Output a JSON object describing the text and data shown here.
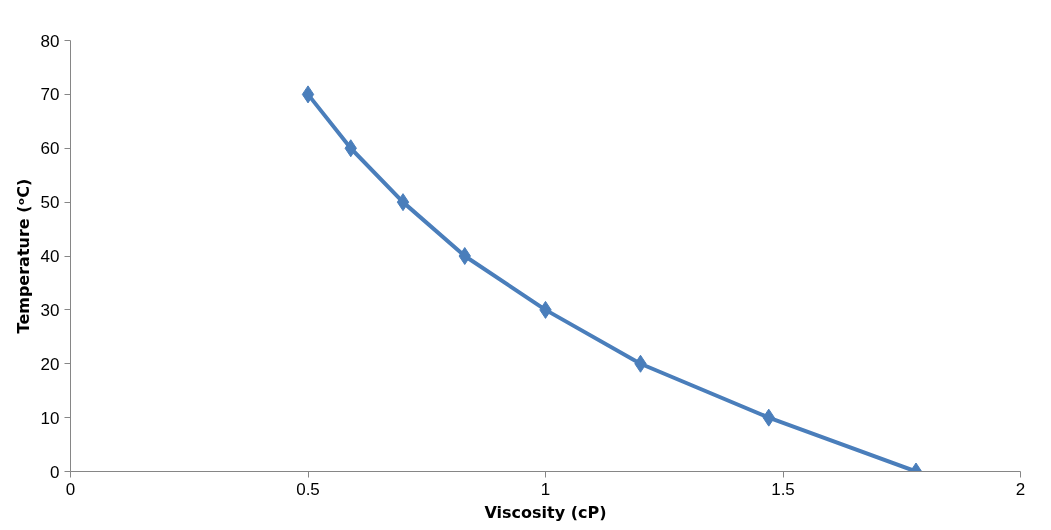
{
  "chart_data": {
    "type": "line",
    "xlabel": "Viscosity (cP)",
    "ylabel": "Temperature (ᵒC)",
    "x": [
      0.5,
      0.59,
      0.7,
      0.83,
      1.0,
      1.2,
      1.47,
      1.78
    ],
    "series": [
      {
        "color": "#4a7ebb",
        "values": [
          70,
          60,
          50,
          40,
          30,
          20,
          10,
          0
        ]
      }
    ],
    "xlim": [
      0,
      2
    ],
    "xticks": [
      0,
      0.5,
      1,
      1.5,
      2
    ],
    "ylim": [
      0,
      80
    ],
    "yticks": [
      0,
      10,
      20,
      30,
      40,
      50,
      60,
      70,
      80
    ],
    "marker": "diamond",
    "line_style": "solid",
    "grid": false
  }
}
